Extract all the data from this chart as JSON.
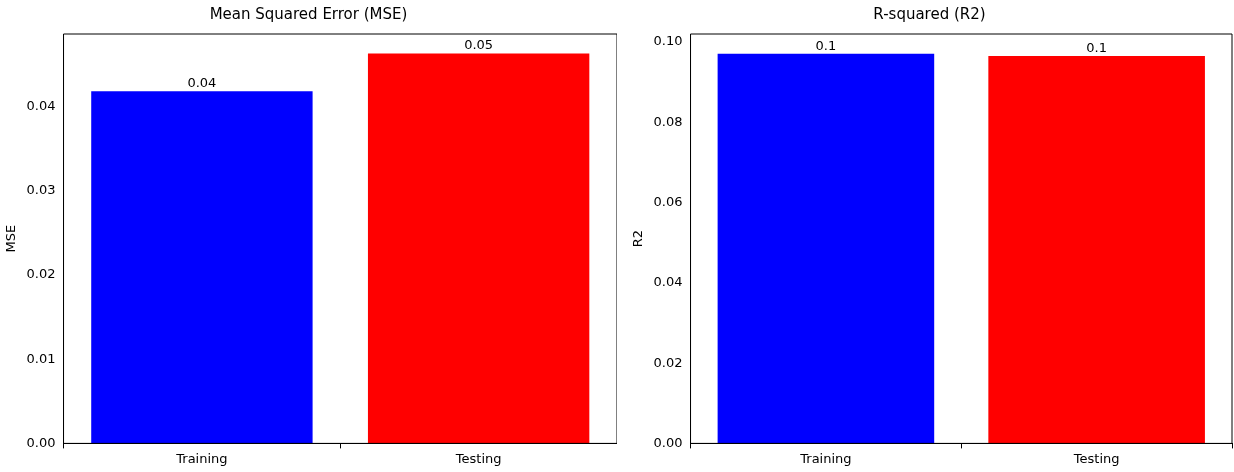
{
  "chart_data": [
    {
      "type": "bar",
      "title": "Mean Squared Error (MSE)",
      "ylabel": "MSE",
      "categories": [
        "Training",
        "Testing"
      ],
      "values": [
        0.0418,
        0.0463
      ],
      "colors": [
        "#0000ff",
        "#ff0000"
      ],
      "value_labels": [
        "0.04",
        "0.05"
      ],
      "ylim": [
        0,
        0.0486
      ],
      "yticks": [
        {
          "value": 0,
          "label": "0.00"
        },
        {
          "value": 0.01,
          "label": "0.01"
        },
        {
          "value": 0.02,
          "label": "0.02"
        },
        {
          "value": 0.03,
          "label": "0.03"
        },
        {
          "value": 0.04,
          "label": "0.04"
        }
      ],
      "grid": false,
      "legend": false
    },
    {
      "type": "bar",
      "title": "R-squared (R2)",
      "ylabel": "R2",
      "categories": [
        "Training",
        "Testing"
      ],
      "values": [
        0.0971,
        0.0965
      ],
      "colors": [
        "#0000ff",
        "#ff0000"
      ],
      "value_labels": [
        "0.1",
        "0.1"
      ],
      "ylim": [
        0,
        0.102
      ],
      "yticks": [
        {
          "value": 0,
          "label": "0.00"
        },
        {
          "value": 0.02,
          "label": "0.02"
        },
        {
          "value": 0.04,
          "label": "0.04"
        },
        {
          "value": 0.06,
          "label": "0.06"
        },
        {
          "value": 0.08,
          "label": "0.08"
        },
        {
          "value": 0.1,
          "label": "0.10"
        }
      ],
      "grid": false,
      "legend": false
    }
  ]
}
